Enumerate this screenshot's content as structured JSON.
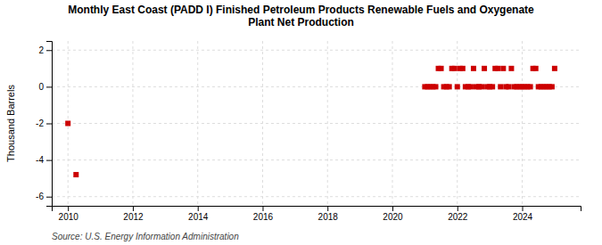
{
  "chart_data": {
    "type": "scatter",
    "title": "Monthly East Coast (PADD I) Finished Petroleum Products Renewable Fuels and Oxygenate\nPlant Net Production",
    "ylabel": "Thousand Barrels",
    "annotations": [
      "Source: U.S. Energy Information Administration"
    ],
    "color": "#cc0000",
    "marker": "square",
    "grid": true,
    "xlim": [
      2009.5,
      2025.8
    ],
    "ylim": [
      -6.5,
      2.5
    ],
    "xticks": [
      2010,
      2012,
      2014,
      2016,
      2018,
      2020,
      2022,
      2024
    ],
    "yticks": [
      -6,
      -4,
      -2,
      0,
      2
    ],
    "x": [
      2010.0,
      2010.25,
      2021.0,
      2021.083,
      2021.167,
      2021.25,
      2021.333,
      2021.417,
      2021.5,
      2021.583,
      2021.667,
      2021.75,
      2021.833,
      2021.917,
      2022.0,
      2022.083,
      2022.167,
      2022.25,
      2022.333,
      2022.417,
      2022.5,
      2022.583,
      2022.667,
      2022.75,
      2022.833,
      2022.917,
      2023.0,
      2023.083,
      2023.167,
      2023.25,
      2023.333,
      2023.417,
      2023.5,
      2023.583,
      2023.667,
      2023.75,
      2023.833,
      2023.917,
      2024.0,
      2024.083,
      2024.167,
      2024.25,
      2024.333,
      2024.417,
      2024.5,
      2024.583,
      2024.667,
      2024.75,
      2024.833,
      2024.917,
      2025.0
    ],
    "values": [
      -2.0,
      -4.8,
      0,
      0,
      0,
      0,
      0,
      1,
      1,
      0,
      0,
      0,
      1,
      1,
      0,
      1,
      1,
      0,
      0,
      0,
      1,
      0,
      0,
      0,
      1,
      0,
      0,
      0,
      1,
      1,
      0,
      1,
      0,
      0,
      1,
      0,
      0,
      0,
      0,
      0,
      0,
      0,
      1,
      1,
      0,
      0,
      0,
      0,
      0,
      0,
      1
    ]
  }
}
